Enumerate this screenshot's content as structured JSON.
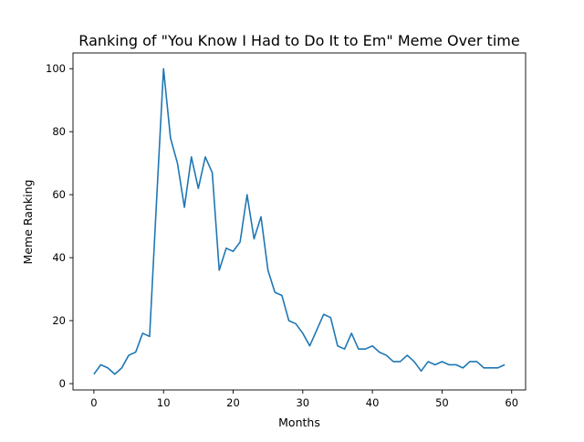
{
  "chart_data": {
    "type": "line",
    "title": "Ranking of \"You Know I Had to Do It to Em\" Meme Over time",
    "xlabel": "Months",
    "ylabel": "Meme Ranking",
    "xlim": [
      -3,
      62
    ],
    "ylim": [
      -2,
      105
    ],
    "xticks": [
      0,
      10,
      20,
      30,
      40,
      50,
      60
    ],
    "yticks": [
      0,
      20,
      40,
      60,
      80,
      100
    ],
    "grid": false,
    "colors": {
      "line": "#1f77b4"
    },
    "series": [
      {
        "x": [
          0,
          1,
          2,
          3,
          4,
          5,
          6,
          7,
          8,
          9,
          10,
          11,
          12,
          13,
          14,
          15,
          16,
          17,
          18,
          19,
          20,
          21,
          22,
          23,
          24,
          25,
          26,
          27,
          28,
          29,
          30,
          31,
          32,
          33,
          34,
          35,
          36,
          37,
          38,
          39,
          40,
          41,
          42,
          43,
          44,
          45,
          46,
          47,
          48,
          49,
          50,
          51,
          52,
          53,
          54,
          55,
          56,
          57,
          58,
          59
        ],
        "values": [
          3,
          6,
          5,
          3,
          5,
          9,
          10,
          16,
          15,
          58,
          100,
          78,
          70,
          56,
          72,
          62,
          72,
          67,
          36,
          43,
          42,
          45,
          60,
          46,
          53,
          36,
          29,
          28,
          20,
          19,
          16,
          12,
          17,
          22,
          21,
          12,
          11,
          16,
          11,
          11,
          12,
          10,
          9,
          7,
          7,
          9,
          7,
          4,
          7,
          6,
          7,
          6,
          6,
          5,
          7,
          7,
          5,
          5,
          5,
          6
        ]
      }
    ]
  }
}
